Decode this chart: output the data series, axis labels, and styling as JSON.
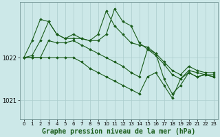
{
  "bg_color": "#cce8e8",
  "grid_color": "#aacccc",
  "line_color": "#1a5c1a",
  "marker_color": "#1a5c1a",
  "xlabel": "Graphe pression niveau de la mer (hPa)",
  "xlabel_fontsize": 7.0,
  "yticks": [
    1021,
    1022
  ],
  "ylim": [
    1020.55,
    1023.3
  ],
  "xlim": [
    -0.5,
    23.5
  ],
  "xticks": [
    0,
    1,
    2,
    3,
    4,
    5,
    6,
    7,
    8,
    9,
    10,
    11,
    12,
    13,
    14,
    15,
    16,
    17,
    18,
    19,
    20,
    21,
    22,
    23
  ],
  "series": [
    {
      "x": [
        0,
        1,
        2,
        3,
        4,
        5,
        6,
        7,
        8,
        9,
        10,
        11,
        12,
        13,
        14,
        15,
        16,
        17,
        18,
        19,
        20,
        21,
        22,
        23
      ],
      "y": [
        1022.0,
        1022.05,
        1022.4,
        1022.85,
        1022.55,
        1022.45,
        1022.55,
        1022.45,
        1022.4,
        1022.55,
        1023.1,
        1022.75,
        1022.55,
        1022.35,
        1022.3,
        1022.25,
        1022.1,
        1021.9,
        1021.7,
        1021.6,
        1021.8,
        1021.7,
        1021.65,
        1021.65
      ]
    },
    {
      "x": [
        0,
        1,
        2,
        3,
        4,
        5,
        6,
        7,
        8,
        9,
        10,
        11,
        12,
        13,
        14,
        15,
        16,
        17,
        18,
        19,
        20,
        21,
        22,
        23
      ],
      "y": [
        1022.0,
        1022.4,
        1022.9,
        1022.85,
        1022.55,
        1022.45,
        1022.45,
        1022.45,
        1022.4,
        1022.4,
        1022.55,
        1023.15,
        1022.85,
        1022.75,
        1022.35,
        1022.2,
        1022.05,
        1021.85,
        1021.6,
        1021.5,
        1021.7,
        1021.65,
        1021.6,
        1021.6
      ]
    },
    {
      "x": [
        0,
        1,
        2,
        3,
        4,
        5,
        6,
        7,
        8,
        9,
        10,
        11,
        12,
        13,
        14,
        15,
        16,
        17,
        18,
        19,
        20,
        21,
        22,
        23
      ],
      "y": [
        1022.0,
        1022.0,
        1022.0,
        1022.4,
        1022.35,
        1022.35,
        1022.4,
        1022.3,
        1022.2,
        1022.1,
        1022.0,
        1021.9,
        1021.8,
        1021.65,
        1021.55,
        1022.2,
        1022.1,
        1021.5,
        1021.15,
        1021.35,
        1021.65,
        1021.55,
        1021.6,
        1021.55
      ]
    },
    {
      "x": [
        0,
        1,
        2,
        3,
        4,
        5,
        6,
        7,
        8,
        9,
        10,
        11,
        12,
        13,
        14,
        15,
        16,
        17,
        18,
        19,
        20,
        21,
        22,
        23
      ],
      "y": [
        1022.0,
        1022.0,
        1022.0,
        1022.0,
        1022.0,
        1022.0,
        1022.0,
        1021.9,
        1021.75,
        1021.65,
        1021.55,
        1021.45,
        1021.35,
        1021.25,
        1021.15,
        1021.55,
        1021.65,
        1021.35,
        1021.05,
        1021.5,
        1021.65,
        1021.55,
        1021.6,
        1021.55
      ]
    }
  ]
}
